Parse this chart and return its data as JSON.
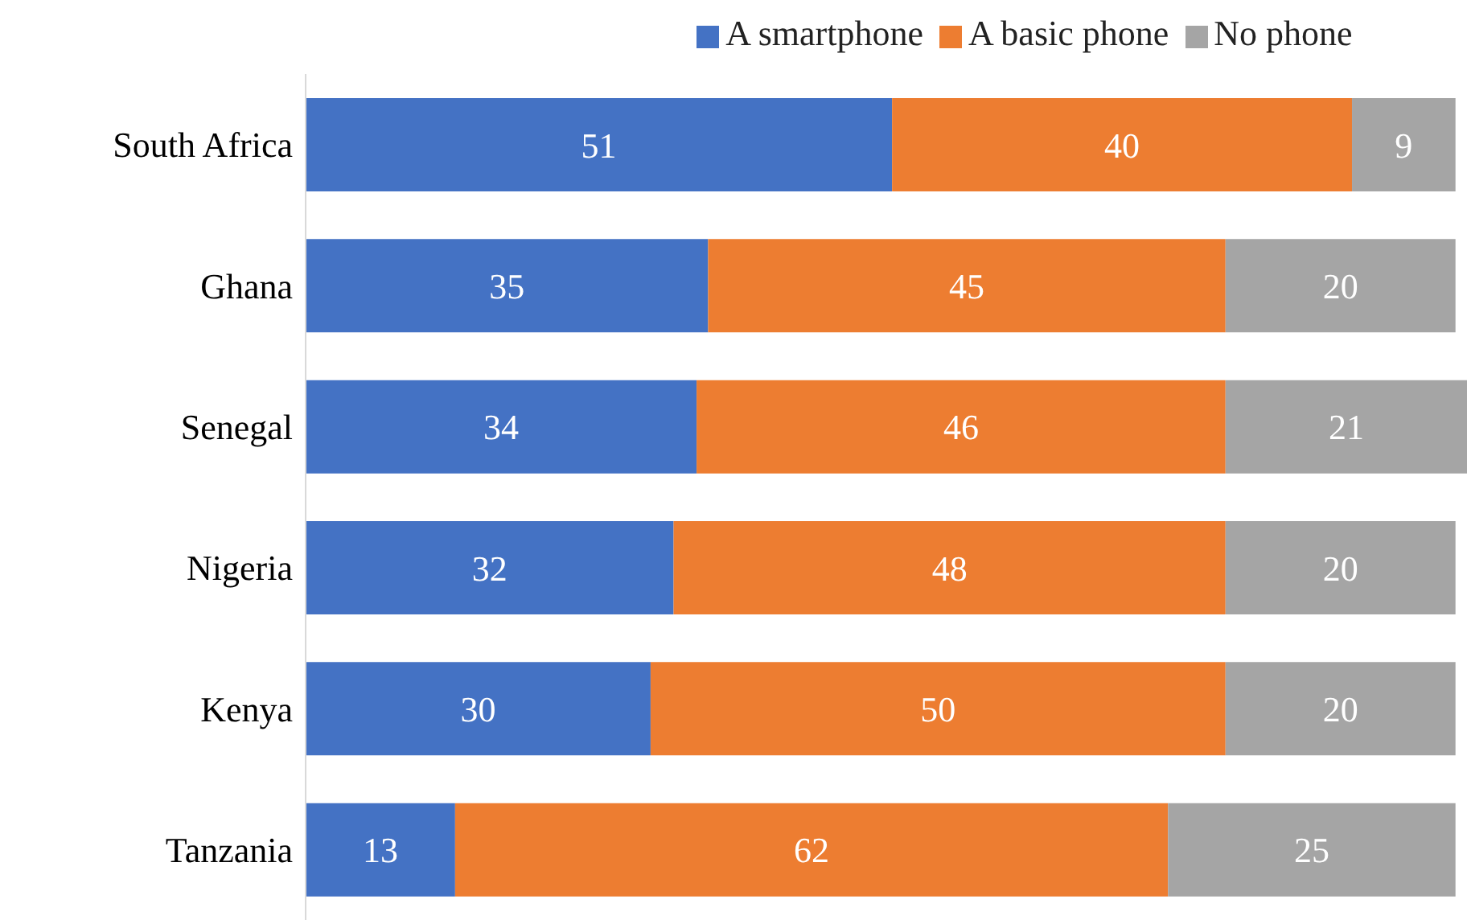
{
  "chart_data": {
    "type": "bar",
    "orientation": "horizontal",
    "stacked": true,
    "data_labels": true,
    "legend": "top",
    "grid": false,
    "categories": [
      "South Africa",
      "Ghana",
      "Senegal",
      "Nigeria",
      "Kenya",
      "Tanzania"
    ],
    "series": [
      {
        "name": "A smartphone",
        "color": "#4472c4",
        "values": [
          51,
          35,
          34,
          32,
          30,
          13
        ]
      },
      {
        "name": "A basic phone",
        "color": "#ed7d31",
        "values": [
          40,
          45,
          46,
          48,
          50,
          62
        ]
      },
      {
        "name": "No phone",
        "color": "#a5a5a5",
        "values": [
          9,
          20,
          21,
          20,
          20,
          25
        ]
      }
    ]
  }
}
